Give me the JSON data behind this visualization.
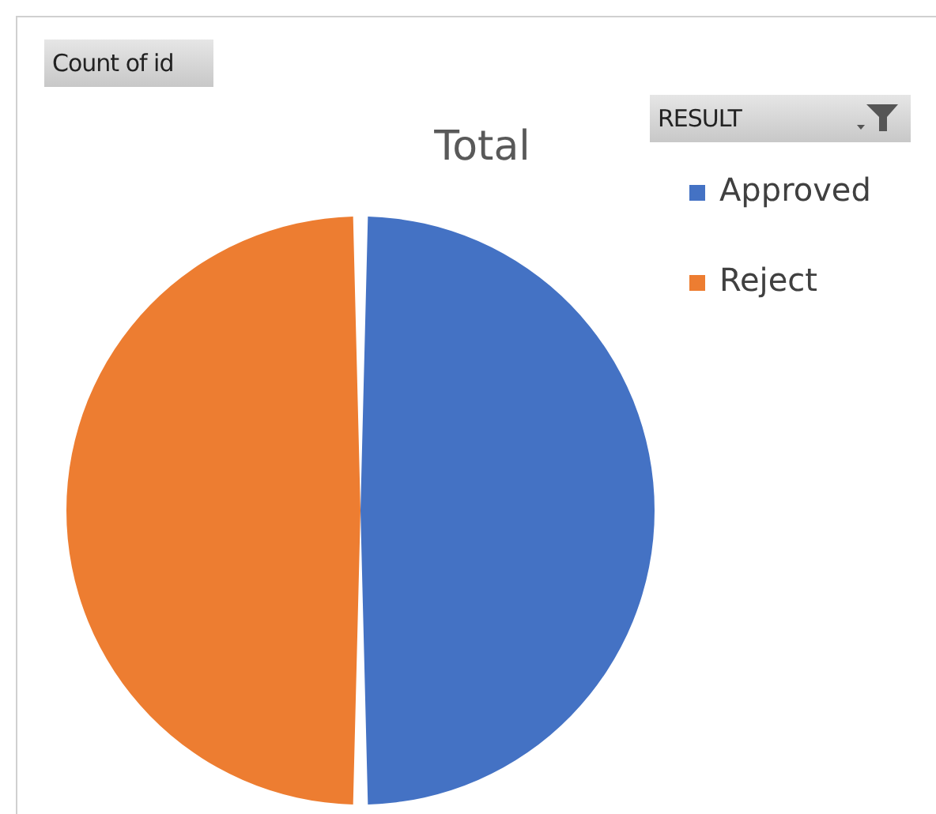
{
  "chart_data": {
    "type": "pie",
    "title": "Total",
    "legend_title": "RESULT",
    "annotations": [
      "Count of id"
    ],
    "categories": [
      "Approved",
      "Reject"
    ],
    "values": [
      50,
      50
    ],
    "colors": [
      "#4472c4",
      "#ed7d31"
    ],
    "legend": "top right"
  }
}
